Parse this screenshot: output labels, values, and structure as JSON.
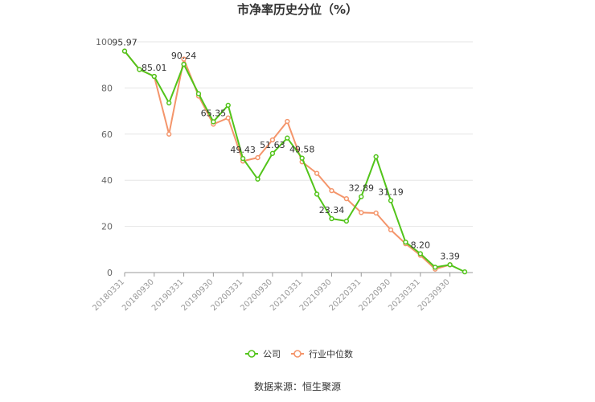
{
  "chart_data": {
    "type": "line",
    "title": "市净率历史分位（%）",
    "ylim": [
      0,
      100
    ],
    "yticks": [
      0,
      20,
      40,
      60,
      80,
      100
    ],
    "x": [
      "20180331",
      "20180630",
      "20180930",
      "20181231",
      "20190331",
      "20190630",
      "20190930",
      "20191231",
      "20200331",
      "20200630",
      "20200930",
      "20201231",
      "20210331",
      "20210630",
      "20210930",
      "20211231",
      "20220331",
      "20220630",
      "20220930",
      "20221231",
      "20230331",
      "20230630",
      "20230930",
      "20231231"
    ],
    "xtick_labels": [
      "20180331",
      "20180930",
      "20190331",
      "20190930",
      "20200331",
      "20200930",
      "20210331",
      "20210930",
      "20220331",
      "20220930",
      "20230331",
      "20230930"
    ],
    "series": [
      {
        "name": "公司",
        "color": "#52c41a",
        "values": [
          95.97,
          88.0,
          85.01,
          73.5,
          90.24,
          77.5,
          65.35,
          72.5,
          49.43,
          40.5,
          51.63,
          58.3,
          49.58,
          34.0,
          23.34,
          22.3,
          32.89,
          50.2,
          31.19,
          13.2,
          8.2,
          2.3,
          3.39,
          0.3
        ]
      },
      {
        "name": "行业中位数",
        "color": "#f4956b",
        "values": [
          95.97,
          88.0,
          85.01,
          60.0,
          92.5,
          76.5,
          64.3,
          67.0,
          48.3,
          49.8,
          57.5,
          65.5,
          48.0,
          43.0,
          35.5,
          32.0,
          26.0,
          25.8,
          18.5,
          12.5,
          7.5,
          1.5,
          3.39,
          null
        ]
      }
    ],
    "data_labels": [
      {
        "index": 0,
        "text": "95.97"
      },
      {
        "index": 2,
        "text": "85.01"
      },
      {
        "index": 4,
        "text": "90.24"
      },
      {
        "index": 6,
        "text": "65.35"
      },
      {
        "index": 8,
        "text": "49.43"
      },
      {
        "index": 10,
        "text": "51.63"
      },
      {
        "index": 12,
        "text": "49.58"
      },
      {
        "index": 14,
        "text": "23.34"
      },
      {
        "index": 16,
        "text": "32.89"
      },
      {
        "index": 18,
        "text": "31.19"
      },
      {
        "index": 20,
        "text": "8.20"
      },
      {
        "index": 22,
        "text": "3.39"
      }
    ],
    "legend_position": "bottom-center",
    "grid": true
  },
  "source": "数据来源：恒生聚源"
}
